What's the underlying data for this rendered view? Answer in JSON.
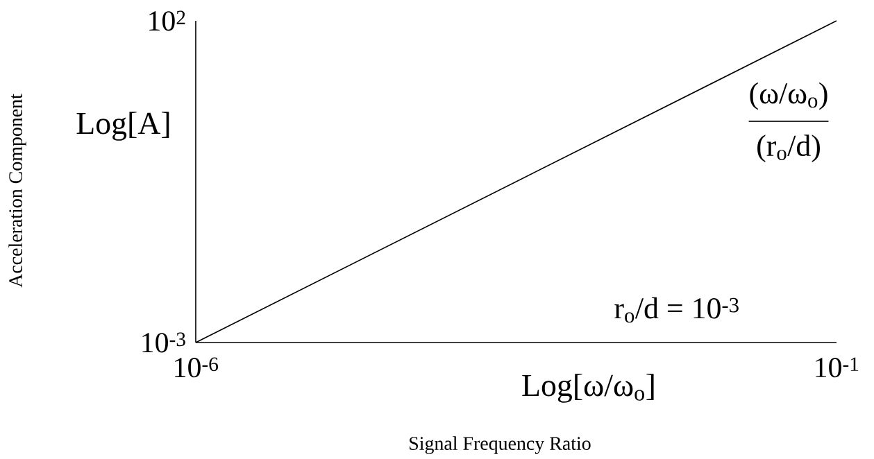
{
  "chart_data": {
    "type": "line",
    "xlabel": "Log[ω/ω$_{o}$]",
    "ylabel": "Log[A]",
    "annotations": [
      "Acceleration Component",
      "Signal Frequency Ratio",
      "(ω/ω$_{o}$)",
      "(r$_{o}$/d)",
      "r$_{o}$/d = 10$^{-3}$"
    ],
    "x": [
      1e-06,
      0.1
    ],
    "series": [
      {
        "color": "#000000",
        "values": [
          0.001,
          100
        ]
      }
    ],
    "log": "xy",
    "xlim": [
      1e-06,
      0.1
    ],
    "ylim": [
      0.001,
      100
    ],
    "xticks": [
      {
        "value": 1e-06,
        "label": "10$^{-6}$"
      },
      {
        "value": 0.1,
        "label": "10$^{-1}$"
      }
    ],
    "yticks": [
      {
        "value": 0.001,
        "label": "10$^{-3}$"
      },
      {
        "value": 100,
        "label": "10$^{2}$"
      }
    ]
  }
}
